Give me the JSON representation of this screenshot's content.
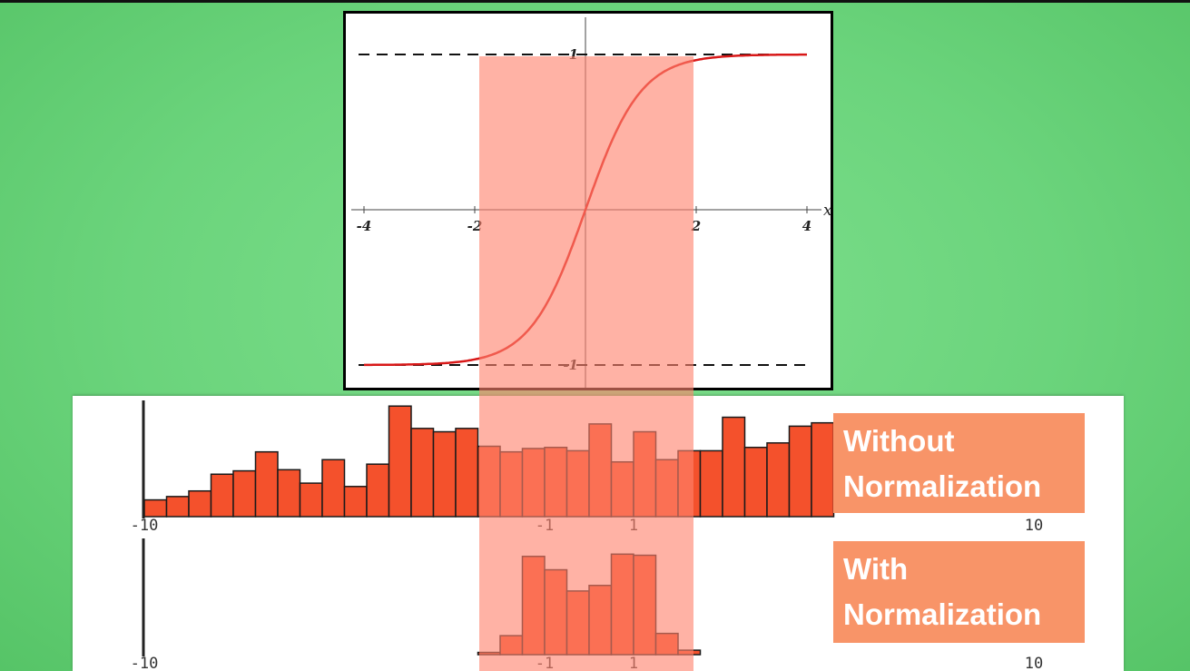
{
  "colors": {
    "background": "#6bd47c",
    "curve": "#d81818",
    "bar_fill": "#f4512c",
    "highlight_band": "#ff826e",
    "label_box": "#f89468"
  },
  "labels": {
    "without": [
      "Without",
      "Normalization"
    ],
    "with": [
      "With",
      "Normalization"
    ]
  },
  "chart_data": [
    {
      "type": "line",
      "function": "tanh(x)",
      "xlabel": "x",
      "xlim": [
        -4,
        4
      ],
      "ylim": [
        -1,
        1
      ],
      "x_ticks": [
        "-4",
        "-2",
        "2",
        "4"
      ],
      "y_ticks": [
        "1",
        "-1"
      ],
      "asymptotes": [
        1,
        -1
      ],
      "highlight_x_range": [
        -1.9,
        2.0
      ],
      "x": [
        -4,
        -3.5,
        -3,
        -2.5,
        -2,
        -1.5,
        -1,
        -0.5,
        0,
        0.5,
        1,
        1.5,
        2,
        2.5,
        3,
        3.5,
        4
      ],
      "y": [
        -0.999,
        -0.998,
        -0.995,
        -0.987,
        -0.964,
        -0.905,
        -0.762,
        -0.462,
        0,
        0.462,
        0.762,
        0.905,
        0.964,
        0.987,
        0.995,
        0.998,
        0.999
      ]
    },
    {
      "type": "bar",
      "title": "Without Normalization",
      "xlim": [
        -10,
        10
      ],
      "x_ticks": [
        "-10",
        "-1",
        "1",
        "10"
      ],
      "bin_width": 0.5,
      "bin_starts": [
        -10,
        -9.5,
        -9,
        -8.5,
        -8,
        -7.5,
        -7,
        -6.5,
        -6,
        -5.5,
        -5,
        -4.5,
        -4,
        -3.5,
        -3,
        -2.5,
        -2,
        -1.5,
        -1,
        -0.5,
        0,
        0.5,
        1,
        1.5,
        2,
        2.5,
        3,
        3.5,
        4,
        4.5,
        5
      ],
      "values": [
        15,
        18,
        23,
        38,
        41,
        58,
        42,
        30,
        51,
        27,
        47,
        99,
        79,
        76,
        79,
        63,
        58,
        61,
        62,
        59,
        83,
        49,
        76,
        51,
        59,
        59,
        89,
        62,
        66,
        81,
        84
      ]
    },
    {
      "type": "bar",
      "title": "With Normalization",
      "xlim": [
        -10,
        10
      ],
      "x_ticks": [
        "-10",
        "-1",
        "1",
        "10"
      ],
      "bin_width": 0.5,
      "bin_starts": [
        -2.5,
        -2,
        -1.5,
        -1,
        -0.5,
        0,
        0.5,
        1,
        1.5,
        2
      ],
      "values": [
        2,
        17,
        88,
        76,
        57,
        62,
        90,
        89,
        19,
        4
      ]
    }
  ]
}
